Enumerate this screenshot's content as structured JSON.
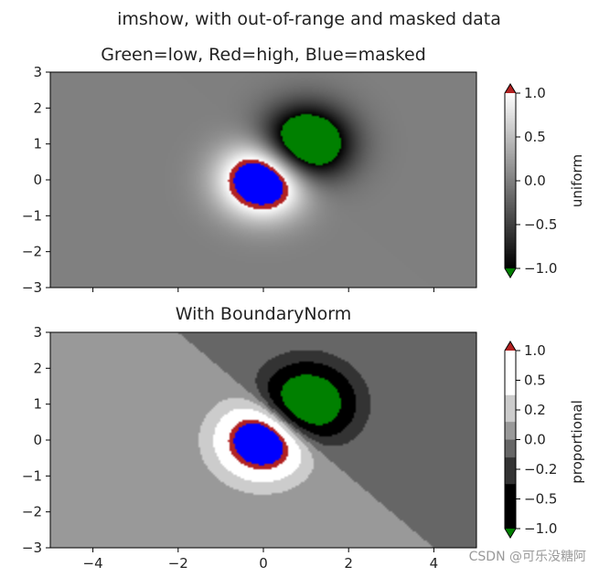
{
  "suptitle": "imshow, with out-of-range and masked data",
  "watermark": "CSDN @可乐没糖阿",
  "colors": {
    "low": "#008000",
    "high": "#b22222",
    "masked": "#0000ff",
    "cmap": "gray"
  },
  "chart_data": [
    {
      "type": "heatmap",
      "title": "Green=low, Red=high, Blue=masked",
      "xlim": [
        -5,
        5
      ],
      "ylim": [
        -3,
        3
      ],
      "xticks": [
        "-4",
        "-2",
        "0",
        "2",
        "4"
      ],
      "xtick_values": [
        -4,
        -2,
        0,
        2,
        4
      ],
      "show_xticklabels": false,
      "yticks": [
        "3",
        "2",
        "1",
        "0",
        "−1",
        "−2",
        "−3"
      ],
      "ytick_values": [
        3,
        2,
        1,
        0,
        -1,
        -2,
        -3
      ],
      "field": "(exp(-x^2-y^2) - exp(-(x-1)^2-(y-1)^2)) * 2",
      "norm": {
        "vmin": -1.0,
        "vmax": 1.0
      },
      "masked_above": 1.2,
      "colorbar": {
        "label": "uniform",
        "extend": "both",
        "tick_labels": [
          "1.0",
          "0.5",
          "0.0",
          "−0.5",
          "−1.0"
        ],
        "tick_values": [
          1.0,
          0.5,
          0.0,
          -0.5,
          -1.0
        ]
      }
    },
    {
      "type": "heatmap",
      "title": "With BoundaryNorm",
      "xlim": [
        -5,
        5
      ],
      "ylim": [
        -3,
        3
      ],
      "xticks": [
        "−4",
        "−2",
        "0",
        "2",
        "4"
      ],
      "xtick_values": [
        -4,
        -2,
        0,
        2,
        4
      ],
      "show_xticklabels": true,
      "yticks": [
        "3",
        "2",
        "1",
        "0",
        "−1",
        "−2",
        "−3"
      ],
      "ytick_values": [
        3,
        2,
        1,
        0,
        -1,
        -2,
        -3
      ],
      "field": "(exp(-x^2-y^2) - exp(-(x-1)^2-(y-1)^2)) * 2",
      "norm": {
        "type": "BoundaryNorm",
        "boundaries": [
          -1,
          -0.5,
          -0.2,
          0,
          0.2,
          0.5,
          1
        ]
      },
      "masked_above": 1.2,
      "colorbar": {
        "label": "proportional",
        "extend": "both",
        "tick_labels": [
          "1.0",
          "0.5",
          "0.2",
          "0.0",
          "−0.2",
          "−0.5",
          "−1.0"
        ],
        "tick_values": [
          1.0,
          0.5,
          0.2,
          0.0,
          -0.2,
          -0.5,
          -1.0
        ]
      }
    }
  ]
}
